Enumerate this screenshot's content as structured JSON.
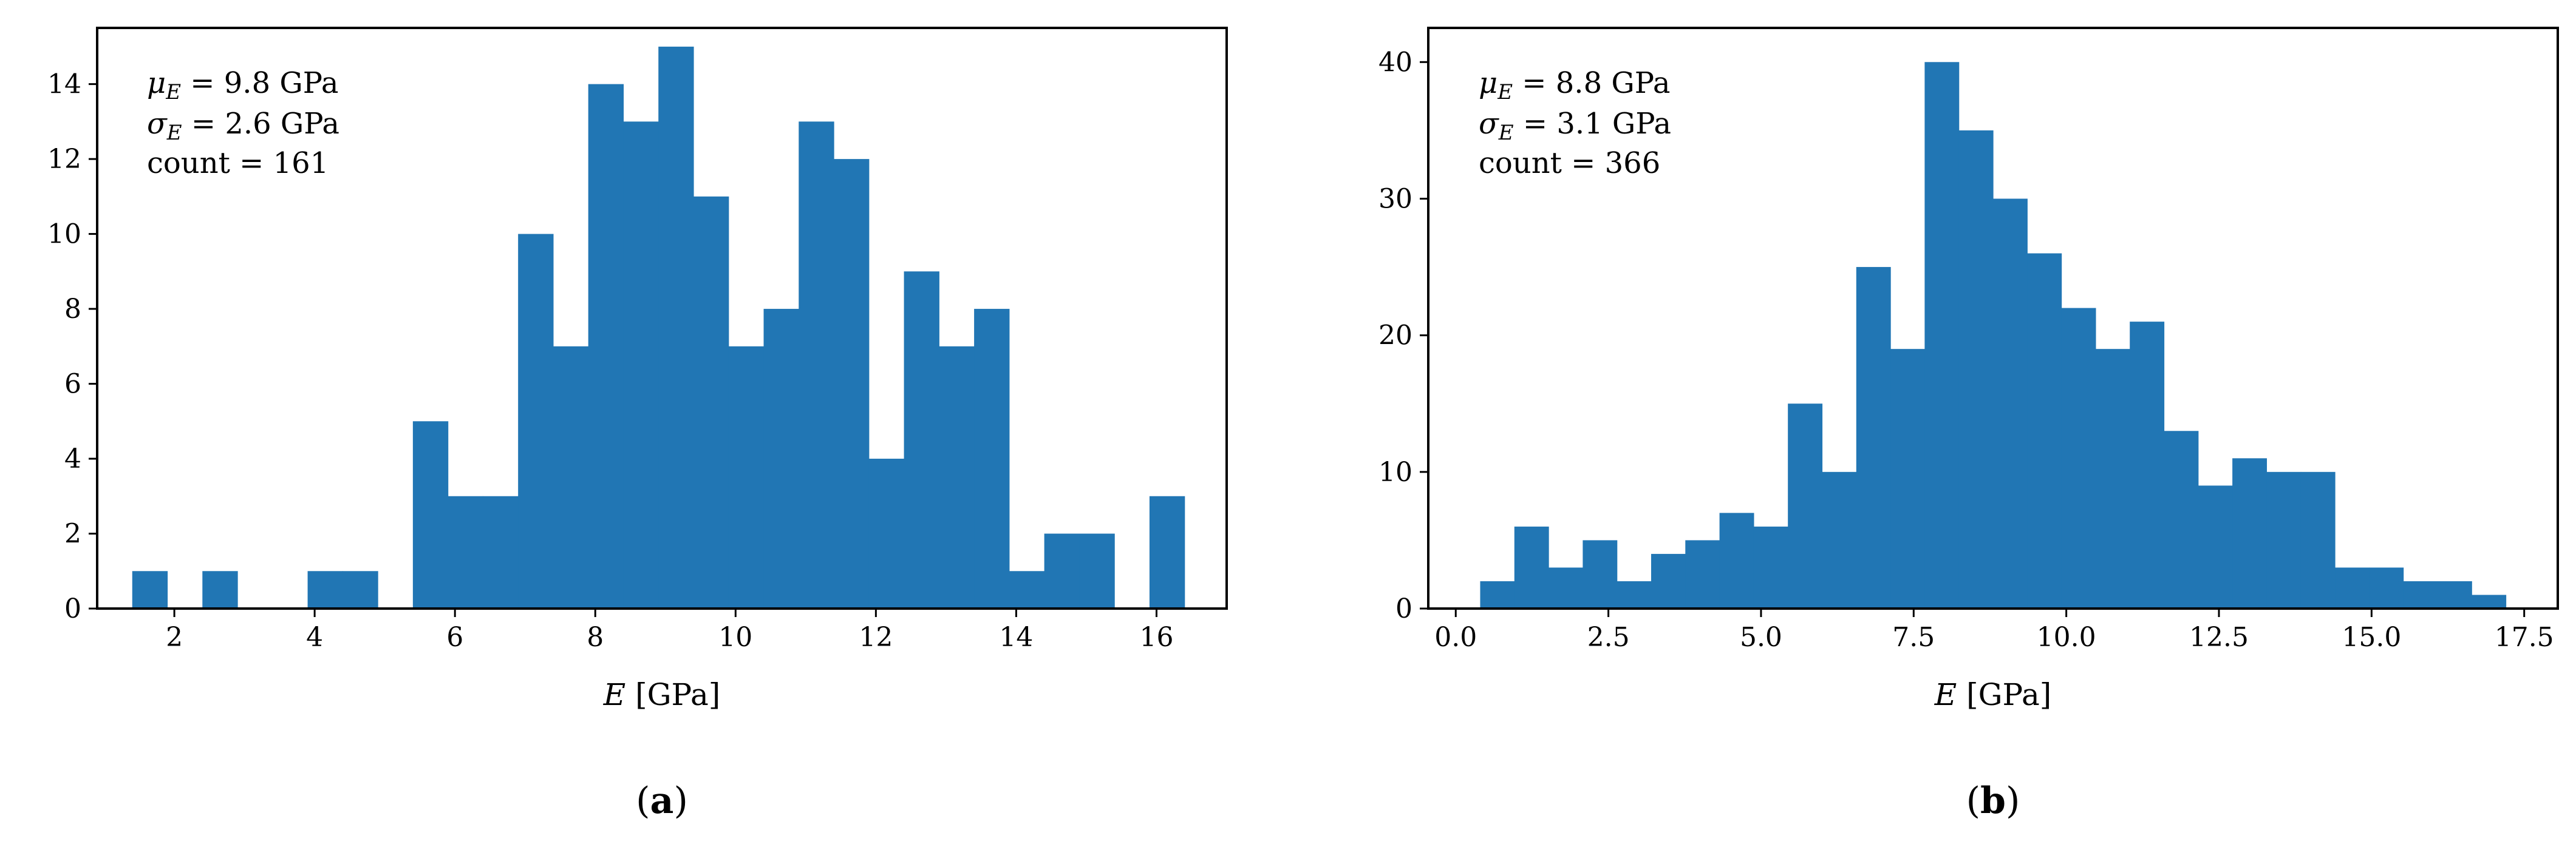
{
  "chart_data": [
    {
      "type": "bar",
      "panel_label": "a",
      "xlabel_var": "E",
      "xlabel_unit": " [GPa]",
      "ylabel": "",
      "bar_color": "#2176b4",
      "bins": {
        "edges": [
          1.4,
          1.9,
          2.4,
          2.9,
          3.4,
          3.9,
          4.4,
          4.9,
          5.4,
          5.9,
          6.4,
          6.9,
          7.4,
          7.9,
          8.4,
          8.9,
          9.4,
          9.9,
          10.4,
          10.9,
          11.4,
          11.9,
          12.4,
          12.9,
          13.4,
          13.9,
          14.4,
          14.9,
          15.4,
          15.9,
          16.4
        ],
        "counts": [
          1,
          0,
          1,
          0,
          0,
          1,
          1,
          0,
          5,
          3,
          3,
          10,
          7,
          14,
          13,
          15,
          11,
          7,
          8,
          13,
          12,
          4,
          9,
          7,
          8,
          1,
          2,
          2,
          0,
          3
        ]
      },
      "xlim": [
        0.9,
        17.0
      ],
      "ylim": [
        0,
        15.5
      ],
      "xticks": [
        2,
        4,
        6,
        8,
        10,
        12,
        14,
        16
      ],
      "xtick_labels": [
        "2",
        "4",
        "6",
        "8",
        "10",
        "12",
        "14",
        "16"
      ],
      "yticks": [
        0,
        2,
        4,
        6,
        8,
        10,
        12,
        14
      ],
      "ytick_labels": [
        "0",
        "2",
        "4",
        "6",
        "8",
        "10",
        "12",
        "14"
      ],
      "stats": {
        "mean_var": "μ",
        "mean_sub": "E",
        "mean_value": " = 9.8 GPa",
        "std_var": "σ",
        "std_sub": "E",
        "std_value": " = 2.6 GPa",
        "count_text": "count = 161"
      }
    },
    {
      "type": "bar",
      "panel_label": "b",
      "xlabel_var": "E",
      "xlabel_unit": " [GPa]",
      "ylabel": "",
      "bar_color": "#2176b4",
      "bins": {
        "edges": [
          0.4,
          0.96,
          1.52,
          2.08,
          2.64,
          3.2,
          3.76,
          4.32,
          4.88,
          5.44,
          6.0,
          6.56,
          7.12,
          7.68,
          8.24,
          8.8,
          9.36,
          9.92,
          10.48,
          11.04,
          11.6,
          12.16,
          12.72,
          13.28,
          13.84,
          14.4,
          14.96,
          15.52,
          16.08,
          16.64,
          17.2
        ],
        "counts": [
          2,
          6,
          3,
          5,
          2,
          4,
          5,
          7,
          6,
          15,
          10,
          25,
          19,
          40,
          35,
          30,
          26,
          22,
          19,
          21,
          13,
          9,
          11,
          10,
          10,
          3,
          3,
          2,
          2,
          1
        ]
      },
      "xlim": [
        -0.45,
        18.05
      ],
      "ylim": [
        0,
        42.5
      ],
      "xticks": [
        0.0,
        2.5,
        5.0,
        7.5,
        10.0,
        12.5,
        15.0,
        17.5
      ],
      "xtick_labels": [
        "0.0",
        "2.5",
        "5.0",
        "7.5",
        "10.0",
        "12.5",
        "15.0",
        "17.5"
      ],
      "yticks": [
        0,
        10,
        20,
        30,
        40
      ],
      "ytick_labels": [
        "0",
        "10",
        "20",
        "30",
        "40"
      ],
      "stats": {
        "mean_var": "μ",
        "mean_sub": "E",
        "mean_value": " = 8.8 GPa",
        "std_var": "σ",
        "std_sub": "E",
        "std_value": " = 3.1 GPa",
        "count_text": "count = 366"
      }
    }
  ]
}
